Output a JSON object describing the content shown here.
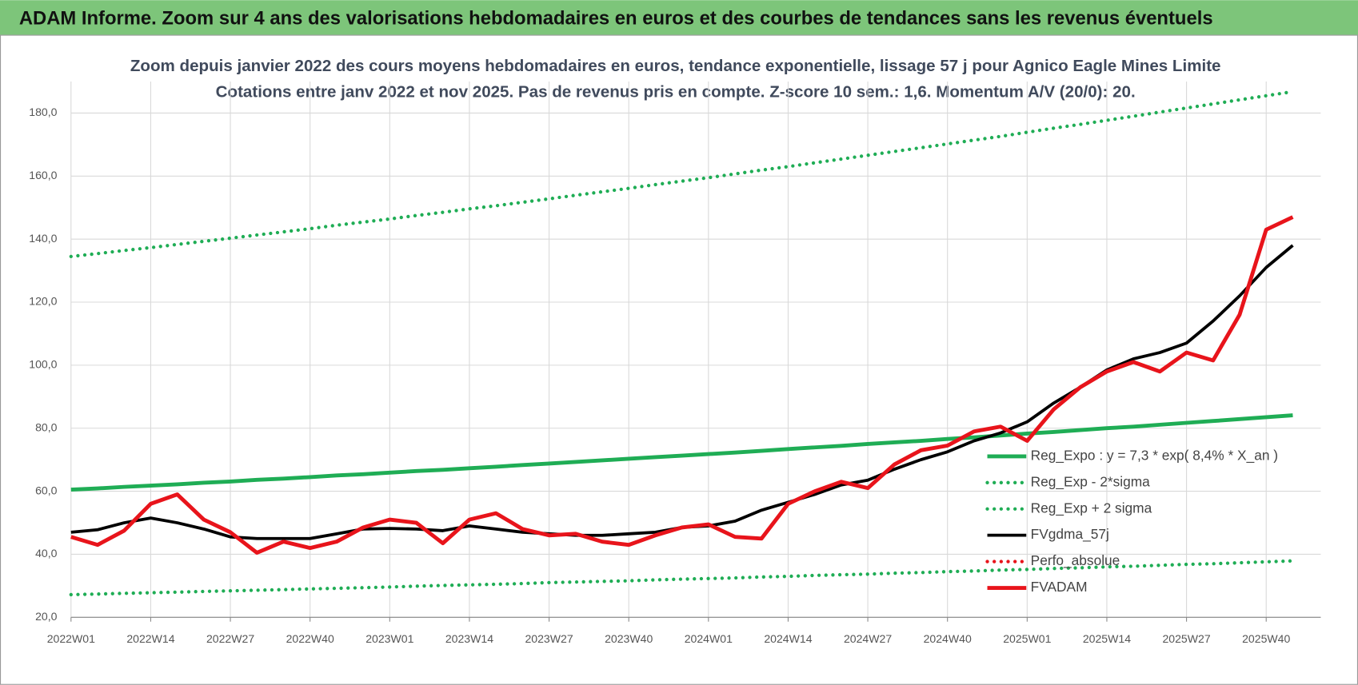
{
  "header": {
    "title": "ADAM Informe. Zoom sur 4 ans des valorisations hebdomadaires en euros et des courbes de tendances sans les revenus éventuels"
  },
  "chart_data": {
    "type": "line",
    "title": "Zoom depuis janvier 2022 des cours moyens hebdomadaires en euros, tendance exponentielle, lissage 57 j pour Agnico Eagle Mines Limite",
    "subtitle": "Cotations entre janv 2022 et nov 2025. Pas de revenus pris en compte. Z-score 10 sem.: 1,6. Momentum A/V (20/0): 20.",
    "categories": [
      "2022W01",
      null,
      null,
      "2022W14",
      null,
      null,
      "2022W27",
      null,
      null,
      "2022W40",
      null,
      null,
      "2023W01",
      null,
      null,
      "2023W14",
      null,
      null,
      "2023W27",
      null,
      null,
      "2023W40",
      null,
      null,
      "2024W01",
      null,
      null,
      "2024W14",
      null,
      null,
      "2024W27",
      null,
      null,
      "2024W40",
      null,
      null,
      "2025W01",
      null,
      null,
      "2025W14",
      null,
      null,
      "2025W27",
      null,
      null,
      "2025W40",
      null
    ],
    "ylim": [
      20,
      190
    ],
    "yticks": [
      {
        "value": 20,
        "label": "20,0"
      },
      {
        "value": 40,
        "label": "40,0"
      },
      {
        "value": 60,
        "label": "60,0"
      },
      {
        "value": 80,
        "label": "80,0"
      },
      {
        "value": 100,
        "label": "100,0"
      },
      {
        "value": 120,
        "label": "120,0"
      },
      {
        "value": 140,
        "label": "140,0"
      },
      {
        "value": 160,
        "label": "160,0"
      },
      {
        "value": 180,
        "label": "180,0"
      }
    ],
    "grid": true,
    "legend": "right",
    "series": [
      {
        "name": "Reg_Expo : y = 7,3 * exp( 8,4% *  X_an )",
        "color": "#1fad55",
        "dash": "solid",
        "values": [
          60.5,
          60.9,
          61.4,
          61.8,
          62.2,
          62.7,
          63.1,
          63.6,
          64.0,
          64.5,
          65.0,
          65.4,
          65.9,
          66.4,
          66.8,
          67.3,
          67.8,
          68.3,
          68.8,
          69.3,
          69.8,
          70.3,
          70.8,
          71.3,
          71.8,
          72.3,
          72.8,
          73.4,
          73.9,
          74.4,
          75.0,
          75.5,
          76.0,
          76.6,
          77.1,
          77.7,
          78.3,
          78.8,
          79.4,
          80.0,
          80.5,
          81.1,
          81.7,
          82.3,
          82.9,
          83.5,
          84.1
        ]
      },
      {
        "name": "Reg_Exp - 2*sigma",
        "color": "#1fad55",
        "dash": "dotted",
        "values": [
          27.2,
          27.4,
          27.6,
          27.8,
          28.0,
          28.2,
          28.4,
          28.6,
          28.8,
          29.0,
          29.2,
          29.4,
          29.6,
          29.9,
          30.1,
          30.3,
          30.5,
          30.7,
          31.0,
          31.2,
          31.4,
          31.6,
          31.9,
          32.1,
          32.3,
          32.5,
          32.8,
          33.0,
          33.3,
          33.5,
          33.7,
          34.0,
          34.2,
          34.5,
          34.7,
          35.0,
          35.2,
          35.5,
          35.7,
          36.0,
          36.2,
          36.5,
          36.8,
          37.0,
          37.3,
          37.6,
          37.9
        ]
      },
      {
        "name": "Reg_Exp + 2 sigma",
        "color": "#1fad55",
        "dash": "dotted",
        "values": [
          134.5,
          135.4,
          136.4,
          137.3,
          138.3,
          139.3,
          140.3,
          141.3,
          142.3,
          143.3,
          144.4,
          145.4,
          146.4,
          147.5,
          148.5,
          149.6,
          150.6,
          151.7,
          152.8,
          153.9,
          155.0,
          156.1,
          157.3,
          158.4,
          159.5,
          160.7,
          161.9,
          163.0,
          164.2,
          165.4,
          166.6,
          167.8,
          169.0,
          170.2,
          171.4,
          172.6,
          173.9,
          175.2,
          176.4,
          177.7,
          179.0,
          180.3,
          181.6,
          182.9,
          184.2,
          185.5,
          186.8
        ]
      },
      {
        "name": "FVgdma_57j",
        "color": "#000000",
        "dash": "solid",
        "values": [
          47,
          47.8,
          50,
          51.5,
          50,
          48,
          45.5,
          45,
          45,
          45,
          46.5,
          48,
          48.2,
          48,
          47.5,
          49,
          48,
          47,
          46.5,
          46,
          46,
          46.5,
          47,
          48.5,
          49,
          50.5,
          54,
          56.5,
          59,
          62,
          63.5,
          67,
          70,
          72.5,
          76,
          78.5,
          82,
          88,
          93,
          98.5,
          102,
          104,
          107,
          114,
          122,
          131,
          138
        ]
      },
      {
        "name": "Perfo_absolue",
        "color": "#e8141b",
        "dash": "dotted",
        "values": [
          null,
          null,
          null,
          null,
          null,
          null,
          null,
          null,
          null,
          null,
          null,
          null,
          null,
          null,
          null,
          null,
          null,
          null,
          null,
          null,
          null,
          null,
          null,
          null,
          null,
          null,
          null,
          null,
          null,
          null,
          null,
          null,
          null,
          null,
          null,
          null,
          null,
          null,
          null,
          null,
          null,
          null,
          null,
          null,
          null,
          null,
          null
        ]
      },
      {
        "name": "FVADAM",
        "color": "#e8141b",
        "dash": "solid",
        "values": [
          45.5,
          43,
          47.5,
          56,
          59,
          51,
          47,
          40.5,
          44,
          42,
          44,
          48.5,
          51,
          50,
          43.5,
          51,
          53,
          48,
          46,
          46.5,
          44,
          43,
          46,
          48.5,
          49.5,
          45.5,
          45,
          56,
          60,
          63,
          61,
          68.5,
          73,
          74.5,
          79,
          80.5,
          76,
          86,
          93,
          98,
          101,
          98,
          104,
          101.5,
          116,
          143,
          147
        ]
      }
    ]
  }
}
